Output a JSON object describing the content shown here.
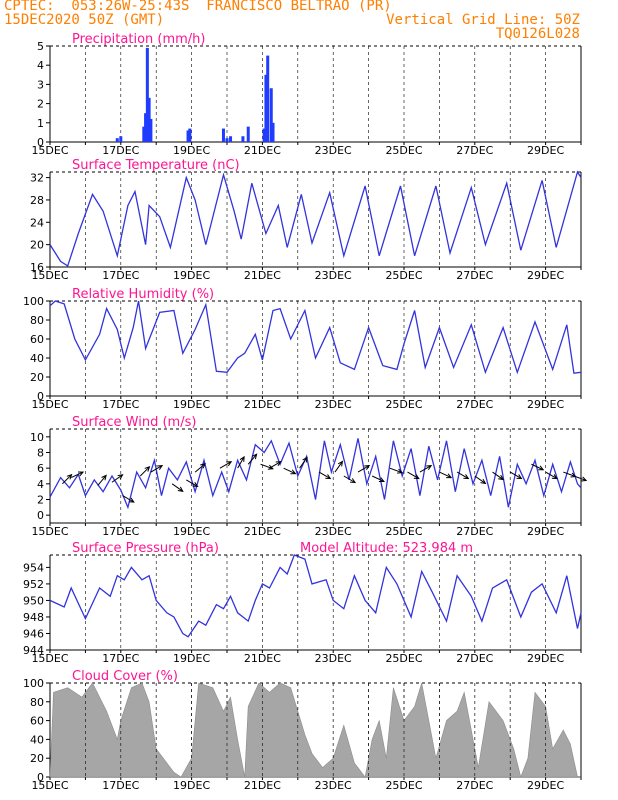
{
  "header": {
    "line1_left": "CPTEC:  053:26W-25:43S  FRANCISCO BELTRAO (PR)",
    "line2_left": "15DEC2020 50Z (GMT)",
    "line2_right": "Vertical Grid Line: 50Z",
    "line3_right": "TQ0126L028"
  },
  "colors": {
    "title": "#ff1493",
    "line": "#3333dd",
    "bar": "#1f3cff",
    "cloud": "#a6a6a6",
    "header": "#ff7f00",
    "frame": "#000000"
  },
  "x_ticks": [
    "15DEC",
    "17DEC",
    "19DEC",
    "21DEC",
    "23DEC",
    "25DEC",
    "27DEC",
    "29DEC"
  ],
  "chart_data": [
    {
      "id": "precip",
      "type": "bar",
      "title": "Precipitation (mm/h)",
      "ylim": [
        0,
        5
      ],
      "yticks": [
        0,
        1,
        2,
        3,
        4,
        5
      ],
      "values": [
        [
          1.9,
          0.2
        ],
        [
          2.0,
          0.3
        ],
        [
          2.65,
          0.8
        ],
        [
          2.7,
          1.5
        ],
        [
          2.75,
          4.9
        ],
        [
          2.8,
          2.3
        ],
        [
          2.85,
          1.2
        ],
        [
          3.9,
          0.6
        ],
        [
          3.95,
          0.7
        ],
        [
          4.9,
          0.7
        ],
        [
          5.0,
          0.2
        ],
        [
          5.1,
          0.3
        ],
        [
          5.45,
          0.3
        ],
        [
          5.6,
          0.8
        ],
        [
          6.05,
          0.7
        ],
        [
          6.1,
          3.5
        ],
        [
          6.15,
          4.5
        ],
        [
          6.25,
          2.8
        ],
        [
          6.3,
          1.0
        ]
      ]
    },
    {
      "id": "temp",
      "type": "line",
      "title": "Surface Temperature (nC)",
      "ylim": [
        16,
        33
      ],
      "yticks": [
        16,
        20,
        24,
        28,
        32
      ],
      "points": [
        [
          0,
          20
        ],
        [
          0.3,
          17
        ],
        [
          0.5,
          16.2
        ],
        [
          0.8,
          22
        ],
        [
          1.2,
          29
        ],
        [
          1.5,
          26
        ],
        [
          1.9,
          18
        ],
        [
          2.2,
          27
        ],
        [
          2.4,
          29.5
        ],
        [
          2.7,
          20
        ],
        [
          2.8,
          27
        ],
        [
          3.1,
          25
        ],
        [
          3.4,
          19.5
        ],
        [
          3.85,
          32
        ],
        [
          4.1,
          28
        ],
        [
          4.4,
          20
        ],
        [
          4.9,
          32.5
        ],
        [
          5.2,
          26
        ],
        [
          5.4,
          21
        ],
        [
          5.7,
          31
        ],
        [
          6.1,
          22
        ],
        [
          6.45,
          27
        ],
        [
          6.7,
          19.5
        ],
        [
          7.1,
          29
        ],
        [
          7.4,
          20.3
        ],
        [
          7.9,
          29.3
        ],
        [
          8.3,
          18
        ],
        [
          8.9,
          30.5
        ],
        [
          9.3,
          18
        ],
        [
          9.9,
          30.5
        ],
        [
          10.3,
          18
        ],
        [
          10.9,
          30.5
        ],
        [
          11.3,
          18.5
        ],
        [
          11.9,
          30.2
        ],
        [
          12.3,
          20
        ],
        [
          12.9,
          31
        ],
        [
          13.3,
          19
        ],
        [
          13.9,
          31.5
        ],
        [
          14.3,
          19.5
        ],
        [
          14.9,
          33
        ],
        [
          15,
          32
        ]
      ]
    },
    {
      "id": "rh",
      "type": "line",
      "title": "Relative Humidity (%)",
      "ylim": [
        0,
        100
      ],
      "yticks": [
        0,
        20,
        40,
        60,
        80,
        100
      ],
      "points": [
        [
          0,
          95
        ],
        [
          0.15,
          100
        ],
        [
          0.4,
          97
        ],
        [
          0.7,
          60
        ],
        [
          1.0,
          38
        ],
        [
          1.4,
          65
        ],
        [
          1.6,
          92
        ],
        [
          1.9,
          70
        ],
        [
          2.1,
          40
        ],
        [
          2.35,
          72
        ],
        [
          2.5,
          100
        ],
        [
          2.7,
          50
        ],
        [
          3.1,
          88
        ],
        [
          3.5,
          90
        ],
        [
          3.75,
          45
        ],
        [
          4.1,
          70
        ],
        [
          4.4,
          96
        ],
        [
          4.7,
          26
        ],
        [
          5.0,
          25
        ],
        [
          5.3,
          40
        ],
        [
          5.5,
          45
        ],
        [
          5.8,
          65
        ],
        [
          6.0,
          38
        ],
        [
          6.3,
          90
        ],
        [
          6.5,
          92
        ],
        [
          6.8,
          60
        ],
        [
          7.2,
          90
        ],
        [
          7.5,
          40
        ],
        [
          7.9,
          72
        ],
        [
          8.2,
          35
        ],
        [
          8.6,
          28
        ],
        [
          9.0,
          72
        ],
        [
          9.4,
          32
        ],
        [
          9.8,
          28
        ],
        [
          10.0,
          55
        ],
        [
          10.3,
          90
        ],
        [
          10.6,
          30
        ],
        [
          11.0,
          72
        ],
        [
          11.4,
          30
        ],
        [
          11.9,
          75
        ],
        [
          12.3,
          25
        ],
        [
          12.8,
          72
        ],
        [
          13.2,
          25
        ],
        [
          13.7,
          78
        ],
        [
          14.2,
          28
        ],
        [
          14.6,
          75
        ],
        [
          14.8,
          24
        ],
        [
          15,
          25
        ]
      ]
    },
    {
      "id": "wind",
      "type": "line",
      "title": "Surface Wind (m/s)",
      "ylim": [
        -1,
        11
      ],
      "yticks": [
        0,
        2,
        4,
        6,
        8,
        10
      ],
      "points": [
        [
          0,
          2.3
        ],
        [
          0.3,
          4.8
        ],
        [
          0.55,
          3.5
        ],
        [
          0.8,
          5.2
        ],
        [
          1.0,
          2.5
        ],
        [
          1.25,
          4.5
        ],
        [
          1.5,
          3.0
        ],
        [
          1.75,
          5.0
        ],
        [
          2.0,
          3.2
        ],
        [
          2.2,
          1.0
        ],
        [
          2.45,
          5.5
        ],
        [
          2.7,
          3.5
        ],
        [
          2.95,
          7.0
        ],
        [
          3.15,
          2.5
        ],
        [
          3.35,
          6.0
        ],
        [
          3.6,
          4.5
        ],
        [
          3.85,
          6.8
        ],
        [
          4.1,
          3.0
        ],
        [
          4.35,
          7.0
        ],
        [
          4.6,
          2.5
        ],
        [
          4.85,
          5.5
        ],
        [
          5.05,
          3.0
        ],
        [
          5.3,
          7.0
        ],
        [
          5.55,
          4.5
        ],
        [
          5.8,
          9.0
        ],
        [
          6.05,
          8.0
        ],
        [
          6.25,
          9.5
        ],
        [
          6.5,
          6.5
        ],
        [
          6.75,
          9.2
        ],
        [
          7.0,
          5.0
        ],
        [
          7.25,
          7.5
        ],
        [
          7.5,
          2.0
        ],
        [
          7.75,
          9.5
        ],
        [
          7.95,
          5.5
        ],
        [
          8.2,
          9.0
        ],
        [
          8.45,
          4.5
        ],
        [
          8.7,
          9.8
        ],
        [
          8.95,
          4.0
        ],
        [
          9.2,
          7.5
        ],
        [
          9.45,
          2.0
        ],
        [
          9.7,
          9.5
        ],
        [
          9.95,
          5.0
        ],
        [
          10.2,
          8.5
        ],
        [
          10.45,
          2.5
        ],
        [
          10.7,
          8.8
        ],
        [
          10.95,
          4.5
        ],
        [
          11.2,
          9.5
        ],
        [
          11.45,
          3.0
        ],
        [
          11.7,
          8.5
        ],
        [
          11.95,
          4.0
        ],
        [
          12.2,
          7.0
        ],
        [
          12.45,
          2.5
        ],
        [
          12.7,
          7.5
        ],
        [
          12.95,
          1.0
        ],
        [
          13.2,
          6.5
        ],
        [
          13.45,
          4.0
        ],
        [
          13.7,
          7.0
        ],
        [
          13.95,
          2.5
        ],
        [
          14.2,
          6.5
        ],
        [
          14.45,
          3.0
        ],
        [
          14.7,
          6.8
        ],
        [
          14.9,
          4.0
        ],
        [
          15,
          3.5
        ]
      ],
      "arrows": [
        [
          0.35,
          4.0,
          45
        ],
        [
          0.6,
          4.8,
          25
        ],
        [
          1.35,
          3.8,
          50
        ],
        [
          1.75,
          4.2,
          35
        ],
        [
          2.05,
          2.5,
          -30
        ],
        [
          2.55,
          5.0,
          45
        ],
        [
          2.85,
          5.5,
          30
        ],
        [
          3.45,
          4.0,
          -35
        ],
        [
          3.85,
          4.5,
          -30
        ],
        [
          4.1,
          5.5,
          40
        ],
        [
          4.8,
          6.0,
          30
        ],
        [
          5.3,
          6.0,
          60
        ],
        [
          5.6,
          6.5,
          50
        ],
        [
          5.95,
          6.5,
          -20
        ],
        [
          6.2,
          6.0,
          30
        ],
        [
          6.6,
          6.0,
          -25
        ],
        [
          7.05,
          6.0,
          55
        ],
        [
          7.6,
          5.5,
          -30
        ],
        [
          8.05,
          5.5,
          55
        ],
        [
          8.3,
          5.0,
          -30
        ],
        [
          8.7,
          5.5,
          30
        ],
        [
          9.1,
          5.0,
          -25
        ],
        [
          9.6,
          6.0,
          -20
        ],
        [
          10.1,
          5.5,
          -30
        ],
        [
          10.45,
          5.5,
          30
        ],
        [
          11.0,
          5.5,
          -25
        ],
        [
          11.5,
          5.5,
          -30
        ],
        [
          12.0,
          5.0,
          -35
        ],
        [
          12.5,
          5.5,
          -35
        ],
        [
          13.0,
          5.5,
          -30
        ],
        [
          13.6,
          6.5,
          -25
        ],
        [
          14.0,
          5.5,
          -30
        ],
        [
          14.5,
          5.5,
          -20
        ],
        [
          14.8,
          5.0,
          -20
        ]
      ]
    },
    {
      "id": "press",
      "type": "line",
      "title": "Surface Pressure (hPa)",
      "annotation": "Model Altitude: 523.984 m",
      "ylim": [
        944,
        955.5
      ],
      "yticks": [
        944,
        946,
        948,
        950,
        952,
        954
      ],
      "points": [
        [
          0,
          950
        ],
        [
          0.4,
          949.2
        ],
        [
          0.6,
          951.5
        ],
        [
          1.0,
          947.8
        ],
        [
          1.4,
          951.5
        ],
        [
          1.7,
          950.5
        ],
        [
          1.9,
          953
        ],
        [
          2.1,
          952.5
        ],
        [
          2.3,
          954
        ],
        [
          2.6,
          952.5
        ],
        [
          2.8,
          953
        ],
        [
          3.0,
          950
        ],
        [
          3.3,
          948.5
        ],
        [
          3.5,
          948
        ],
        [
          3.75,
          946
        ],
        [
          3.9,
          945.6
        ],
        [
          4.2,
          947.5
        ],
        [
          4.4,
          947
        ],
        [
          4.7,
          949.5
        ],
        [
          4.9,
          949
        ],
        [
          5.1,
          950.5
        ],
        [
          5.3,
          948.5
        ],
        [
          5.6,
          947.5
        ],
        [
          5.8,
          950
        ],
        [
          6.0,
          952
        ],
        [
          6.2,
          951.5
        ],
        [
          6.5,
          954
        ],
        [
          6.7,
          953.2
        ],
        [
          6.9,
          955.5
        ],
        [
          7.2,
          955
        ],
        [
          7.4,
          952
        ],
        [
          7.8,
          952.5
        ],
        [
          8.0,
          950
        ],
        [
          8.3,
          949
        ],
        [
          8.6,
          953
        ],
        [
          8.9,
          950
        ],
        [
          9.2,
          948.5
        ],
        [
          9.5,
          954
        ],
        [
          9.8,
          952
        ],
        [
          10.2,
          948
        ],
        [
          10.5,
          953.5
        ],
        [
          10.8,
          951
        ],
        [
          11.2,
          947.5
        ],
        [
          11.5,
          953
        ],
        [
          11.9,
          950.5
        ],
        [
          12.2,
          947.5
        ],
        [
          12.5,
          951.5
        ],
        [
          12.9,
          952.5
        ],
        [
          13.3,
          948
        ],
        [
          13.6,
          951
        ],
        [
          13.9,
          952
        ],
        [
          14.3,
          948.5
        ],
        [
          14.6,
          953
        ],
        [
          14.9,
          946.6
        ],
        [
          15,
          948.5
        ]
      ]
    },
    {
      "id": "cloud",
      "type": "area",
      "title": "Cloud Cover (%)",
      "ylim": [
        0,
        100
      ],
      "yticks": [
        0,
        20,
        40,
        60,
        80,
        100
      ],
      "points": [
        [
          0,
          0
        ],
        [
          0.1,
          90
        ],
        [
          0.5,
          95
        ],
        [
          0.9,
          85
        ],
        [
          1.2,
          100
        ],
        [
          1.6,
          70
        ],
        [
          1.9,
          40
        ],
        [
          2.0,
          60
        ],
        [
          2.3,
          95
        ],
        [
          2.6,
          100
        ],
        [
          2.8,
          80
        ],
        [
          3.0,
          30
        ],
        [
          3.3,
          15
        ],
        [
          3.5,
          5
        ],
        [
          3.7,
          0
        ],
        [
          4.0,
          20
        ],
        [
          4.2,
          100
        ],
        [
          4.6,
          95
        ],
        [
          4.9,
          70
        ],
        [
          5.1,
          85
        ],
        [
          5.3,
          40
        ],
        [
          5.5,
          0
        ],
        [
          5.6,
          75
        ],
        [
          5.9,
          100
        ],
        [
          6.2,
          90
        ],
        [
          6.5,
          100
        ],
        [
          6.8,
          95
        ],
        [
          7.0,
          70
        ],
        [
          7.2,
          45
        ],
        [
          7.4,
          25
        ],
        [
          7.7,
          10
        ],
        [
          8.0,
          20
        ],
        [
          8.3,
          55
        ],
        [
          8.6,
          15
        ],
        [
          8.9,
          0
        ],
        [
          9.1,
          40
        ],
        [
          9.3,
          60
        ],
        [
          9.5,
          20
        ],
        [
          9.7,
          95
        ],
        [
          10.0,
          60
        ],
        [
          10.3,
          75
        ],
        [
          10.5,
          100
        ],
        [
          10.7,
          60
        ],
        [
          10.9,
          20
        ],
        [
          11.2,
          60
        ],
        [
          11.5,
          70
        ],
        [
          11.7,
          90
        ],
        [
          11.9,
          50
        ],
        [
          12.1,
          10
        ],
        [
          12.4,
          80
        ],
        [
          12.8,
          60
        ],
        [
          13.1,
          30
        ],
        [
          13.3,
          0
        ],
        [
          13.5,
          20
        ],
        [
          13.7,
          90
        ],
        [
          14.0,
          75
        ],
        [
          14.2,
          30
        ],
        [
          14.5,
          50
        ],
        [
          14.7,
          35
        ],
        [
          14.9,
          0
        ],
        [
          15,
          0
        ]
      ]
    }
  ]
}
